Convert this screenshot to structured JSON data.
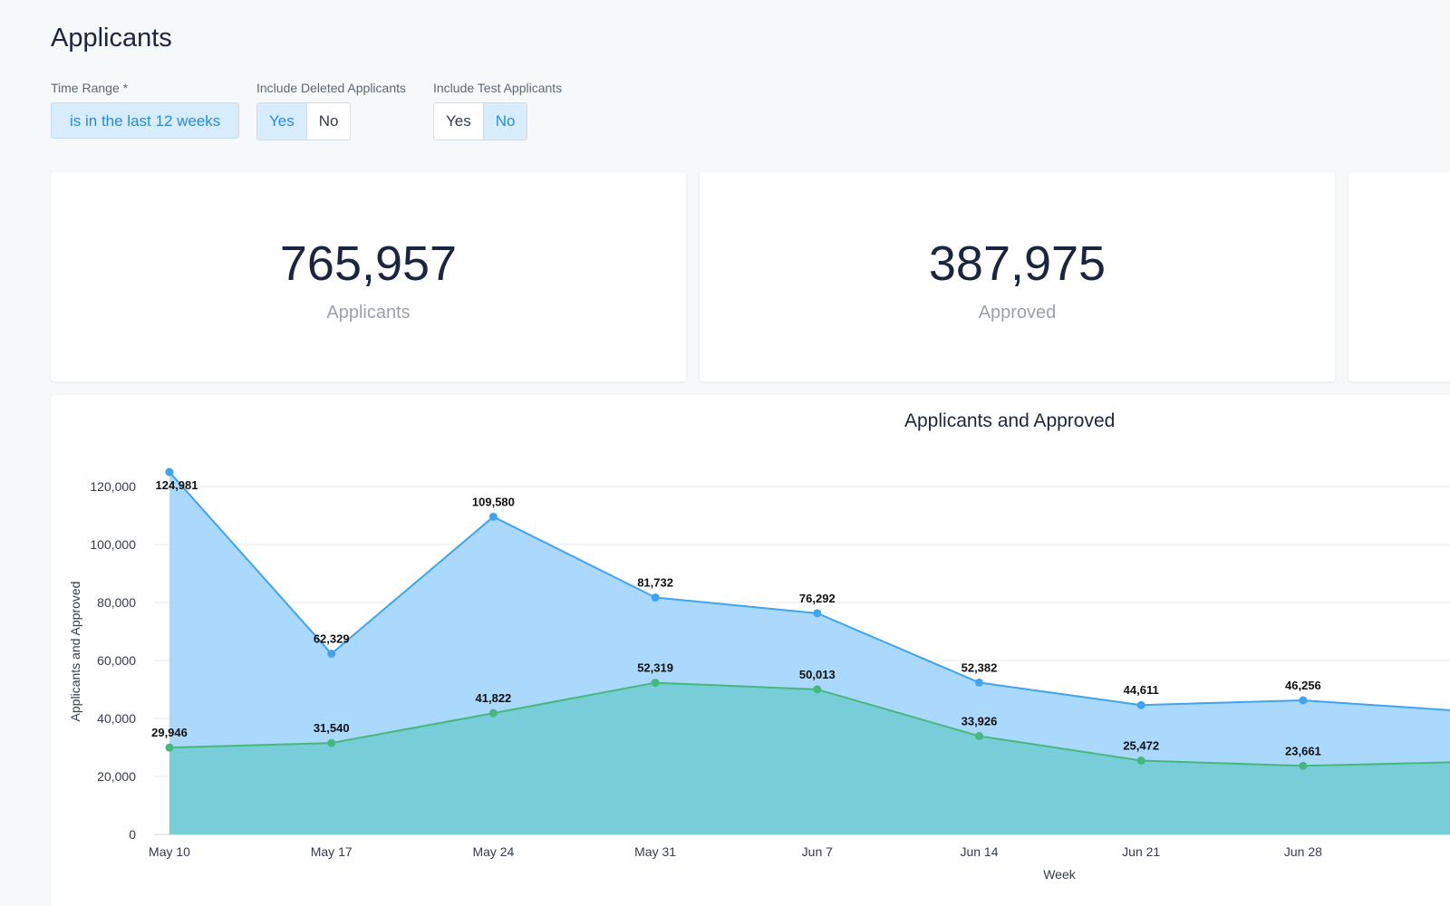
{
  "page": {
    "title": "Applicants"
  },
  "filters": {
    "time_range": {
      "label": "Time Range *",
      "value": "is in the last 12 weeks"
    },
    "include_deleted": {
      "label": "Include Deleted Applicants",
      "yes": "Yes",
      "no": "No",
      "selected": "Yes"
    },
    "include_test": {
      "label": "Include Test Applicants",
      "yes": "Yes",
      "no": "No",
      "selected": "No"
    }
  },
  "kpis": [
    {
      "value": "765,957",
      "label": "Applicants"
    },
    {
      "value": "387,975",
      "label": "Approved"
    }
  ],
  "colors": {
    "applicants_line": "#3ea3f0",
    "applicants_fill": "#abd8fd",
    "approved_line": "#46b87c",
    "approved_fill": "#74ccd6",
    "accent": "#2a8ad9"
  },
  "chart_data": {
    "type": "area",
    "title": "Applicants and Approved",
    "xlabel": "Week",
    "ylabel": "Applicants and Approved",
    "categories": [
      "May 10",
      "May 17",
      "May 24",
      "May 31",
      "Jun 7",
      "Jun 14",
      "Jun 21",
      "Jun 28"
    ],
    "y_ticks": [
      "0",
      "20,000",
      "40,000",
      "60,000",
      "80,000",
      "100,000",
      "120,000"
    ],
    "ylim": [
      0,
      120000
    ],
    "grid": true,
    "series": [
      {
        "name": "Applicants",
        "values": [
          124981,
          62329,
          109580,
          81732,
          76292,
          52382,
          44611,
          46256
        ],
        "labels": [
          "124,981",
          "62,329",
          "109,580",
          "81,732",
          "76,292",
          "52,382",
          "44,611",
          "46,256"
        ],
        "next_partial": 42500
      },
      {
        "name": "Approved",
        "values": [
          29946,
          31540,
          41822,
          52319,
          50013,
          33926,
          25472,
          23661
        ],
        "labels": [
          "29,946",
          "31,540",
          "41,822",
          "52,319",
          "50,013",
          "33,926",
          "25,472",
          "23,661"
        ],
        "next_partial": 25000
      }
    ]
  }
}
